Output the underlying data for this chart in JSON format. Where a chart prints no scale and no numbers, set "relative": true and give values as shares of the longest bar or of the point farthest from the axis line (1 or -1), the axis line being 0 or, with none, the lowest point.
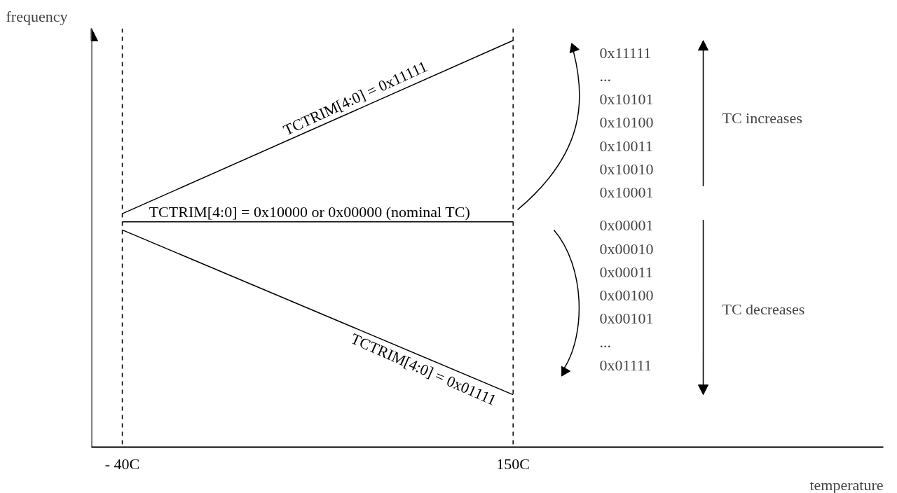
{
  "chart_data": {
    "type": "line",
    "relative": true,
    "xlabel": "temperature",
    "ylabel": "frequency",
    "x": [
      -40,
      150
    ],
    "xlim": [
      -55,
      330
    ],
    "xticks": [
      {
        "value": -40,
        "label": "- 40C"
      },
      {
        "value": 150,
        "label": "150C"
      }
    ],
    "tick_labels": "x",
    "grid": false,
    "legend": false,
    "marker": "none",
    "line_style": "solid",
    "series": [
      {
        "name": "TCTRIM[4:0] = 0x11111",
        "color": "#000000",
        "values": [
          0.574,
          1
        ]
      },
      {
        "name": "TCTRIM[4:0] = 0x10000 or 0x00000 (nominal TC)",
        "color": "#000000",
        "values": [
          0.554,
          0.554
        ]
      },
      {
        "name": "TCTRIM[4:0] = 0x01111",
        "color": "#000000",
        "values": [
          0.534,
          0.129
        ]
      }
    ],
    "ref_lines": [
      {
        "axis": "x",
        "value": -40,
        "label": null,
        "line_style": "dashed",
        "color": "#000000"
      },
      {
        "axis": "x",
        "value": 150,
        "label": null,
        "line_style": "dashed",
        "color": "#000000"
      }
    ],
    "annotations": [
      "0x11111\n...\n0x10101\n0x10100\n0x10011\n0x10010\n0x10001",
      "TC increases",
      "0x00001\n0x00010\n0x00011\n0x00100\n0x00101\n...\n0x01111",
      "TC decreases"
    ]
  }
}
